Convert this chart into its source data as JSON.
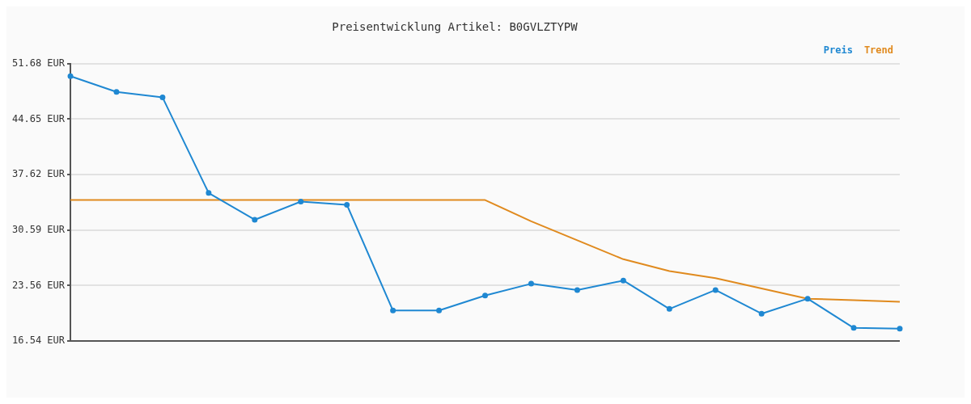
{
  "chart_data": {
    "type": "line",
    "title": "Preisentwicklung Artikel: B0GVLZTYPW",
    "categories": [
      null,
      null,
      null,
      null,
      null,
      null,
      null,
      null,
      null,
      null,
      null,
      null,
      null,
      null,
      null,
      null,
      null,
      null,
      null
    ],
    "series": [
      {
        "name": "Preis",
        "color": "#1f88d2",
        "marker": "circle",
        "values": [
          50.1,
          48.1,
          47.4,
          35.3,
          31.9,
          34.2,
          33.8,
          20.4,
          20.4,
          22.3,
          23.8,
          23.0,
          24.2,
          20.6,
          23.0,
          20.0,
          21.9,
          18.2,
          18.1
        ]
      },
      {
        "name": "Trend",
        "color": "#e08a1e",
        "marker": "none",
        "values": [
          34.4,
          34.4,
          34.4,
          34.4,
          34.4,
          34.4,
          34.4,
          34.4,
          34.4,
          34.4,
          31.7,
          29.3,
          26.9,
          25.4,
          24.5,
          23.2,
          21.9,
          21.7,
          21.5
        ]
      }
    ],
    "ylim": [
      16.54,
      51.68
    ],
    "yticks": [
      {
        "value": 16.54,
        "label": "16.54 EUR"
      },
      {
        "value": 23.56,
        "label": "23.56 EUR"
      },
      {
        "value": 30.59,
        "label": "30.59 EUR"
      },
      {
        "value": 37.62,
        "label": "37.62 EUR"
      },
      {
        "value": 44.65,
        "label": "44.65 EUR"
      },
      {
        "value": 51.68,
        "label": "51.68 EUR"
      }
    ],
    "grid": "y",
    "legend": "top right",
    "tick_labels": "y",
    "line_style": "solid"
  }
}
